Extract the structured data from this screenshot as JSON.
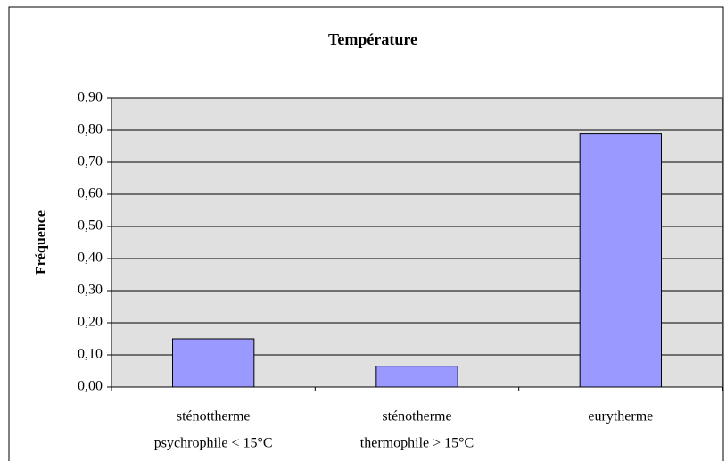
{
  "chart_data": {
    "type": "bar",
    "title": "Température",
    "y_label": "Fréquence",
    "categories": [
      [
        "sténottherme",
        "psychrophile < 15°C"
      ],
      [
        "sténotherme",
        "thermophile > 15°C"
      ],
      [
        "eurytherme"
      ]
    ],
    "values": [
      0.15,
      0.065,
      0.79
    ],
    "color": "#9999ff",
    "ylim": [
      0,
      0.9
    ],
    "yticks": [
      {
        "value": 0,
        "label": "0,00"
      },
      {
        "value": 0.1,
        "label": "0,10"
      },
      {
        "value": 0.2,
        "label": "0,20"
      },
      {
        "value": 0.3,
        "label": "0,30"
      },
      {
        "value": 0.4,
        "label": "0,40"
      },
      {
        "value": 0.5,
        "label": "0,50"
      },
      {
        "value": 0.6,
        "label": "0,60"
      },
      {
        "value": 0.7,
        "label": "0,70"
      },
      {
        "value": 0.8,
        "label": "0,80"
      },
      {
        "value": 0.9,
        "label": "0,90"
      }
    ],
    "grid": true
  }
}
